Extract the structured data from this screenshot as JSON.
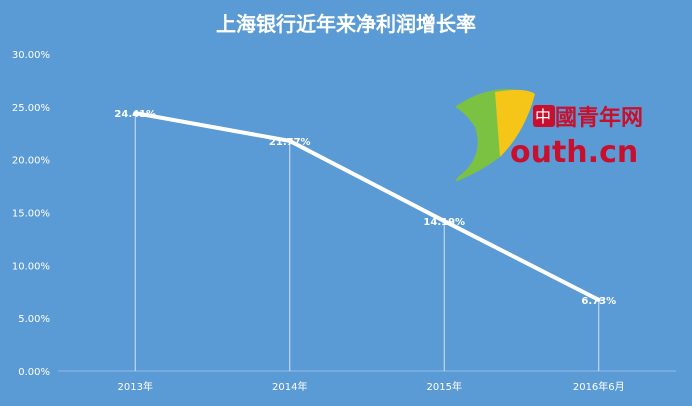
{
  "chart_data": {
    "type": "line",
    "title": "上海银行近年来净利润增长率",
    "categories": [
      "2013年",
      "2014年",
      "2015年",
      "2016年6月"
    ],
    "values": [
      24.41,
      21.77,
      14.19,
      6.73
    ],
    "data_labels": [
      "24.41%",
      "21.77%",
      "14.19%",
      "6.73%"
    ],
    "ylim": [
      0,
      30
    ],
    "yticks": [
      "0.00%",
      "5.00%",
      "10.00%",
      "15.00%",
      "20.00%",
      "25.00%",
      "30.00%"
    ],
    "line_color": "#ffffff",
    "background": "#5b9bd5",
    "grid": false,
    "drop_lines": true
  },
  "watermark": {
    "text_top": "中國青年网",
    "text_bottom": "outh.cn"
  }
}
